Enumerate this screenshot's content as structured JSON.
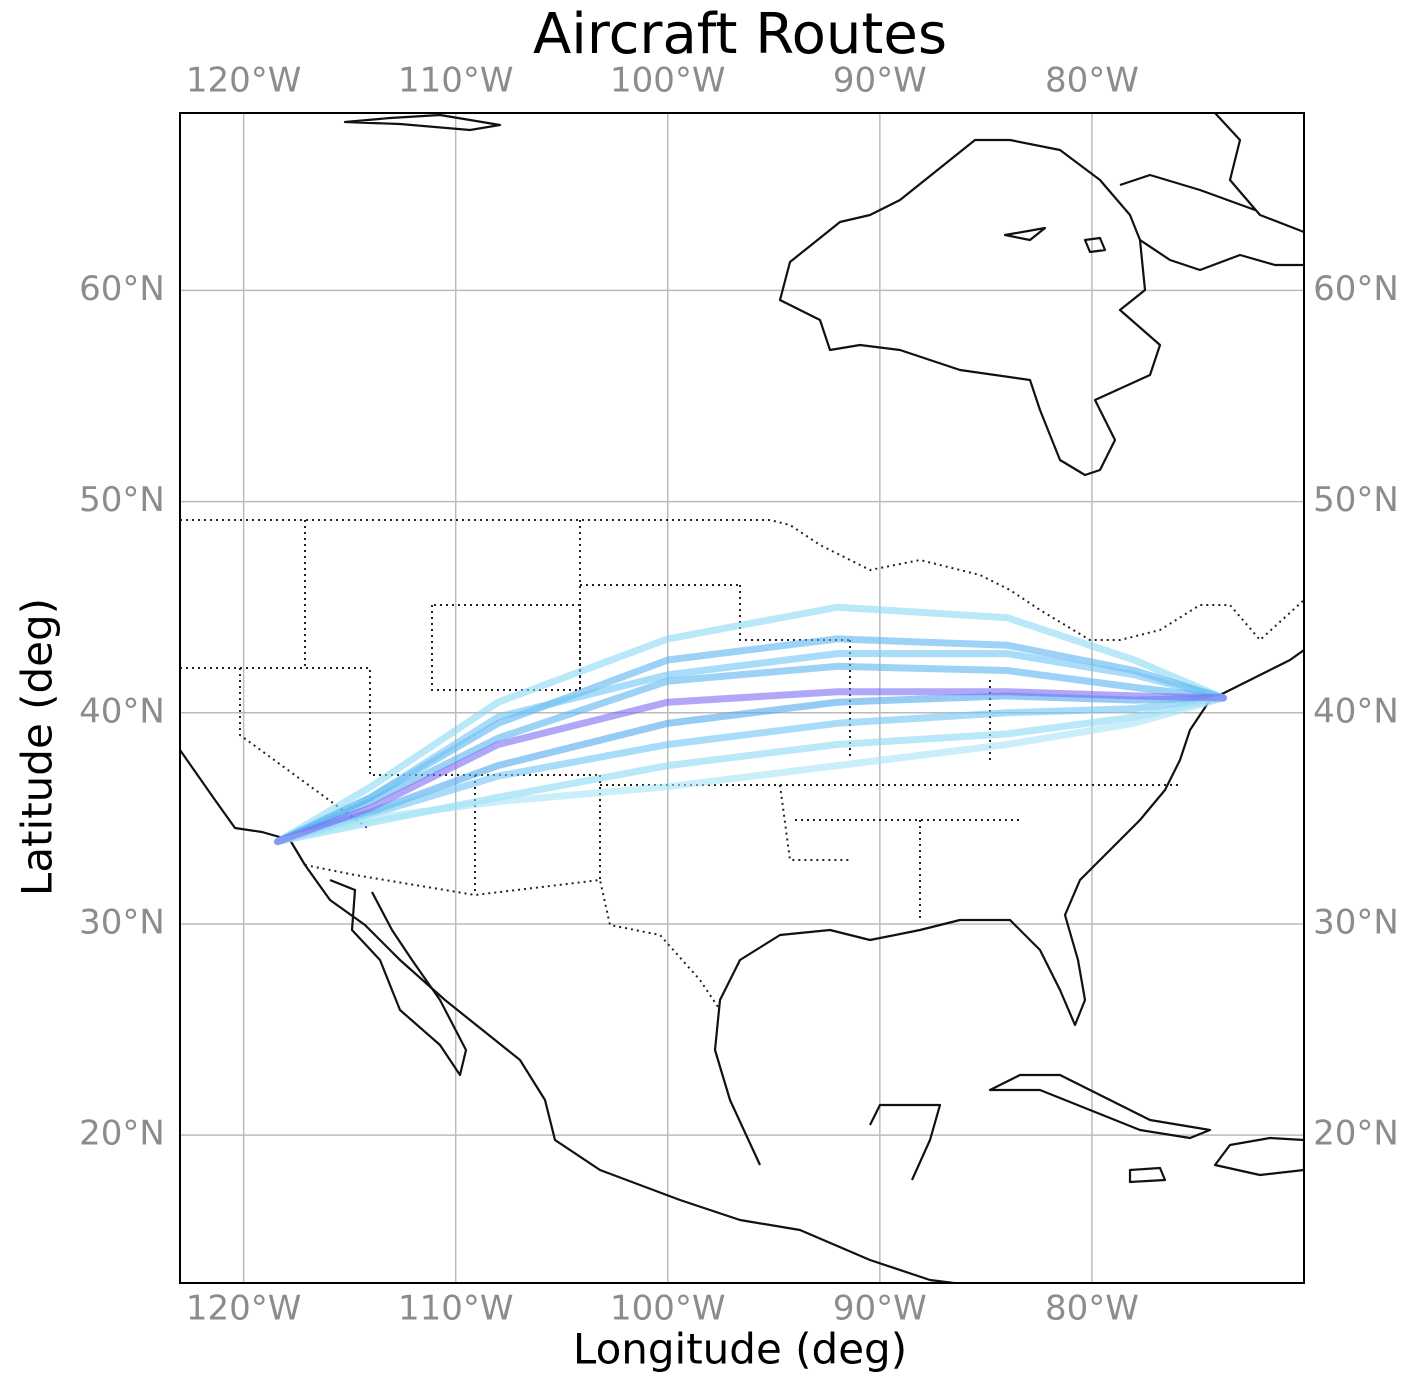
{
  "chart_data": {
    "type": "map",
    "title": "Aircraft Routes",
    "x_label": "Longitude (deg)",
    "y_label": "Latitude (deg)",
    "xlim": [
      -123,
      -70
    ],
    "ylim": [
      13,
      68.4
    ],
    "xticks": [
      {
        "value": -120,
        "label": "120°W"
      },
      {
        "value": -110,
        "label": "110°W"
      },
      {
        "value": -100,
        "label": "100°W"
      },
      {
        "value": -90,
        "label": "90°W"
      },
      {
        "value": -80,
        "label": "80°W"
      }
    ],
    "yticks": [
      {
        "value": 20,
        "label": "20°N"
      },
      {
        "value": 30,
        "label": "30°N"
      },
      {
        "value": 40,
        "label": "40°N"
      },
      {
        "value": 50,
        "label": "50°N"
      },
      {
        "value": 60,
        "label": "60°N"
      }
    ],
    "grid": true,
    "routes": [
      {
        "color": "#8ad8f5",
        "lon": [
          -118.4,
          -114,
          -108,
          -100,
          -92,
          -84,
          -78,
          -73.8
        ],
        "lat": [
          33.9,
          36.5,
          40.5,
          43.5,
          45,
          44.5,
          42.5,
          40.7
        ]
      },
      {
        "color": "#5ab4f0",
        "lon": [
          -118.4,
          -114,
          -108,
          -100,
          -92,
          -84,
          -78,
          -73.8
        ],
        "lat": [
          33.9,
          36,
          39.5,
          42.5,
          43.5,
          43.2,
          42,
          40.7
        ]
      },
      {
        "color": "#6ec4f3",
        "lon": [
          -118.4,
          -114,
          -108,
          -100,
          -92,
          -84,
          -78,
          -73.8
        ],
        "lat": [
          33.9,
          36,
          39.8,
          41.8,
          42.8,
          42.8,
          41.8,
          40.7
        ]
      },
      {
        "color": "#5ab4f0",
        "lon": [
          -118.4,
          -114,
          -108,
          -100,
          -92,
          -84,
          -78,
          -73.8
        ],
        "lat": [
          33.9,
          35.8,
          38.8,
          41.5,
          42.2,
          42,
          41.2,
          40.7
        ]
      },
      {
        "color": "#4fa8ee",
        "lon": [
          -118.4,
          -114,
          -108,
          -100,
          -92,
          -84,
          -78,
          -73.8
        ],
        "lat": [
          33.9,
          35.3,
          37.5,
          39.5,
          40.5,
          40.8,
          40.6,
          40.7
        ]
      },
      {
        "color": "#6ec4f3",
        "lon": [
          -118.4,
          -114,
          -108,
          -100,
          -92,
          -84,
          -78,
          -73.8
        ],
        "lat": [
          33.9,
          35.2,
          37,
          38.5,
          39.5,
          40,
          40.2,
          40.7
        ]
      },
      {
        "color": "#8ad8f5",
        "lon": [
          -118.4,
          -114,
          -108,
          -100,
          -92,
          -84,
          -78,
          -73.8
        ],
        "lat": [
          33.9,
          34.8,
          36,
          37.5,
          38.5,
          39,
          39.8,
          40.7
        ]
      },
      {
        "color": "#a8e4f7",
        "lon": [
          -118.4,
          -114,
          -108,
          -100,
          -92,
          -84,
          -78,
          -73.8
        ],
        "lat": [
          33.9,
          35,
          35.8,
          36.5,
          37.5,
          38.5,
          39.5,
          40.7
        ]
      },
      {
        "color": "#7b6cf5",
        "lon": [
          -118.4,
          -114,
          -108,
          -100,
          -92,
          -84,
          -78,
          -73.8
        ],
        "lat": [
          33.9,
          35.5,
          38.5,
          40.5,
          41,
          41,
          40.8,
          40.7
        ]
      }
    ]
  }
}
